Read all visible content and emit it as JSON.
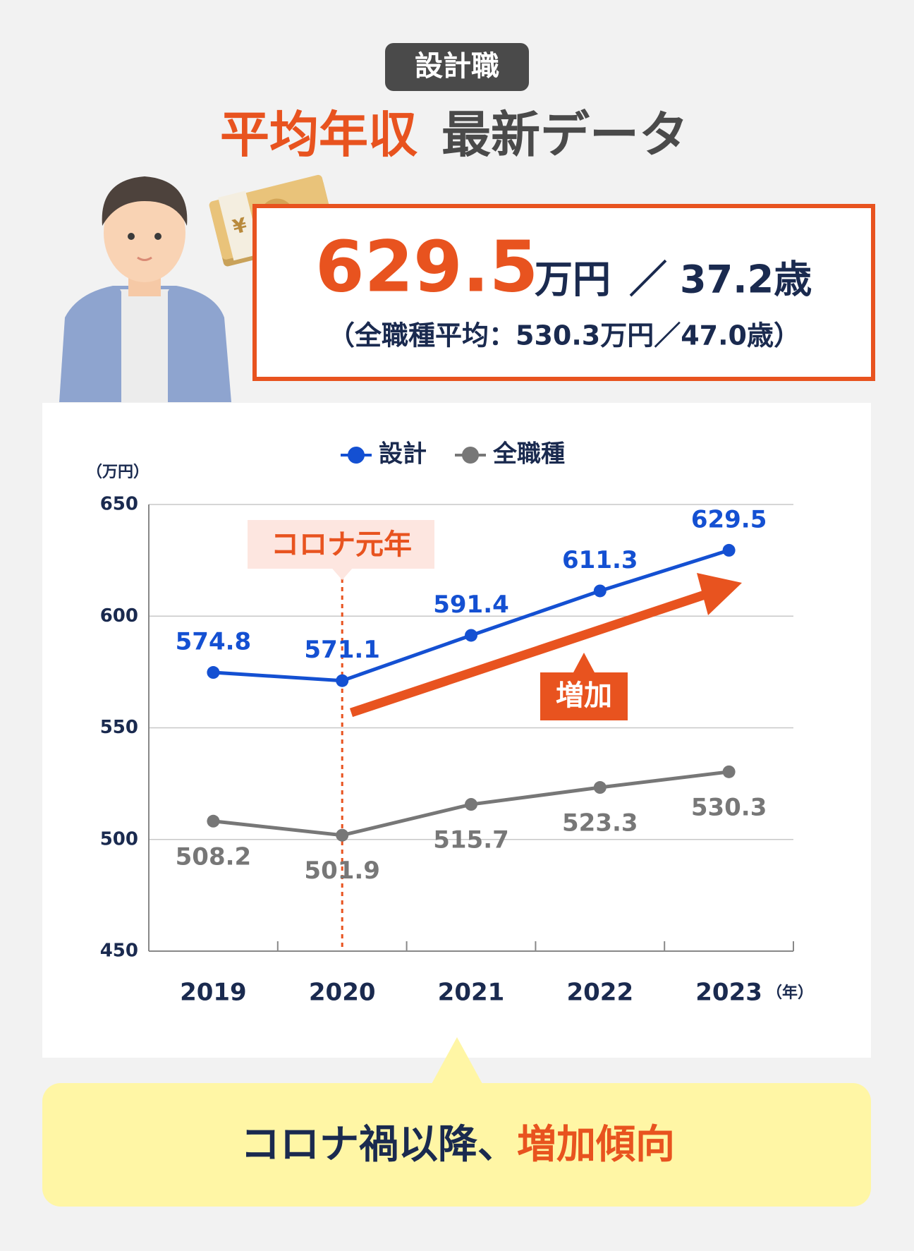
{
  "header": {
    "badge": "設計職",
    "title_highlight": "平均年収",
    "title_rest": "最新データ"
  },
  "summary": {
    "salary": "629.5",
    "salary_unit": "万円",
    "separator": "／",
    "age": "37.2歳",
    "overall": "（全職種平均：530.3万円／47.0歳）"
  },
  "chart_data": {
    "type": "line",
    "y_unit": "（万円）",
    "x_unit": "（年）",
    "categories": [
      "2019",
      "2020",
      "2021",
      "2022",
      "2023"
    ],
    "series": [
      {
        "name": "設計",
        "color": "#1450d2",
        "values": [
          574.8,
          571.1,
          591.4,
          611.3,
          629.5
        ]
      },
      {
        "name": "全職種",
        "color": "#777777",
        "values": [
          508.2,
          501.9,
          515.7,
          523.3,
          530.3
        ]
      }
    ],
    "ylim": [
      450,
      650
    ],
    "yticks": [
      450,
      500,
      550,
      600,
      650
    ],
    "grid": true,
    "annotations": [
      "コロナ元年",
      "増加"
    ]
  },
  "conclusion": {
    "text": "コロナ禍以降、",
    "highlight": "増加傾向"
  }
}
